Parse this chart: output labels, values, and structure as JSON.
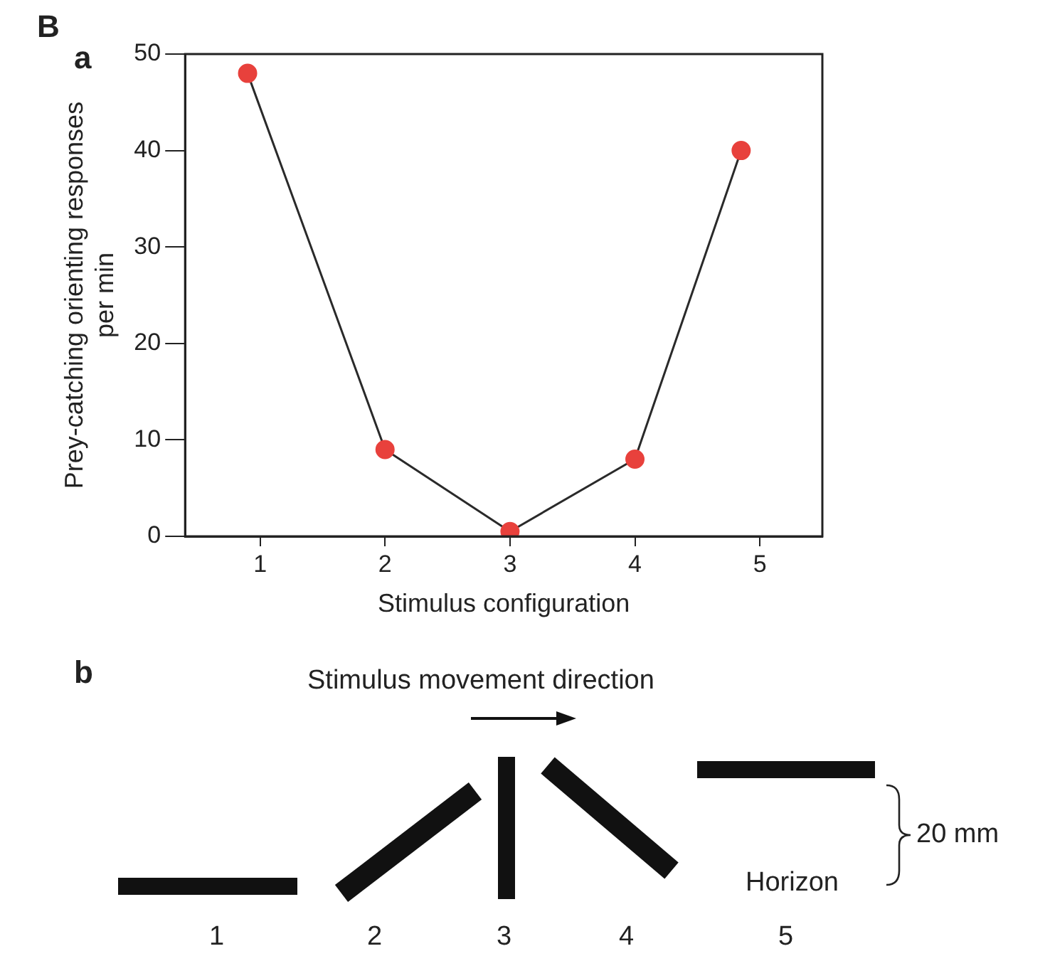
{
  "chart_data": {
    "type": "line",
    "xlabel": "Stimulus configuration",
    "ylabel": "Prey-catching orienting responses per min",
    "x": [
      0.9,
      2,
      3,
      4,
      4.85
    ],
    "series": [
      {
        "color": "#e8413c",
        "values": [
          48,
          9,
          0.5,
          8,
          40
        ]
      }
    ],
    "xlim": [
      0.4,
      5.5
    ],
    "xticks": [
      1,
      2,
      3,
      4,
      5
    ],
    "ylim": [
      0,
      50
    ],
    "yticks": [
      0,
      10,
      20,
      30,
      40,
      50
    ],
    "grid": false,
    "legend": false,
    "marker": "circle",
    "line_style": "solid",
    "annotations": [
      "B",
      "a",
      "b",
      "Stimulus movement direction",
      "1",
      "2",
      "3",
      "4",
      "5",
      "Horizon",
      "20 mm"
    ]
  }
}
